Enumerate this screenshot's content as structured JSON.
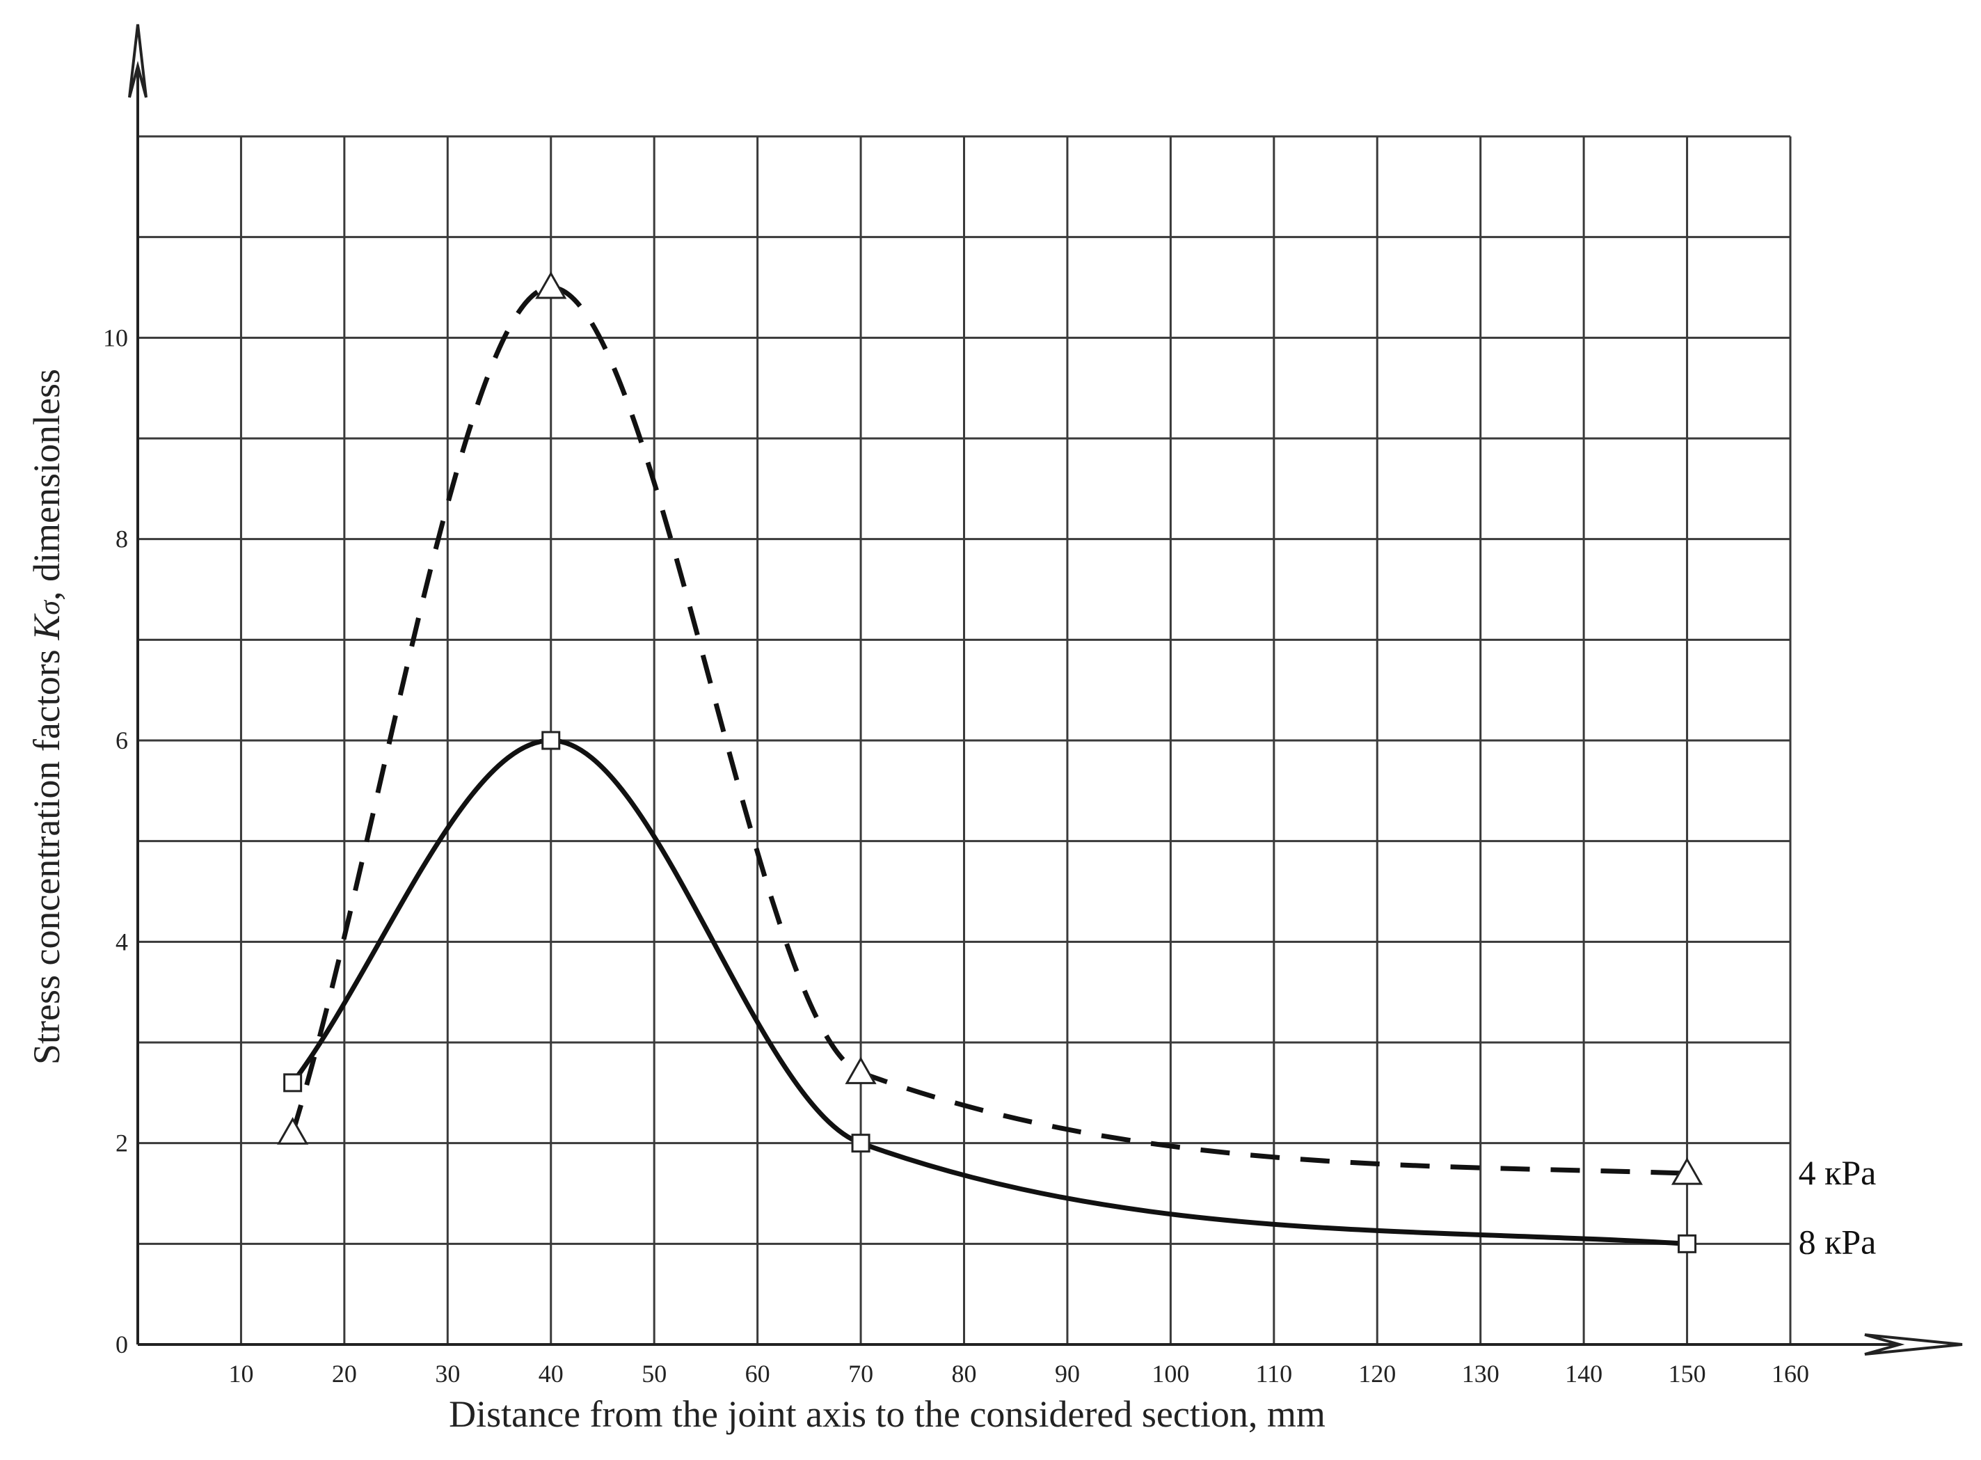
{
  "chart_data": {
    "type": "line",
    "xlabel": "Distance from the joint axis to the considered section, mm",
    "ylabel_prefix": "Stress concentration factors ",
    "ylabel_symbol": "K",
    "ylabel_subscript": "σ",
    "ylabel_suffix": ", dimensionless",
    "xlim": [
      0,
      160
    ],
    "ylim": [
      0,
      12
    ],
    "x_ticks": [
      10,
      20,
      30,
      40,
      50,
      60,
      70,
      80,
      90,
      100,
      110,
      120,
      130,
      140,
      150,
      160
    ],
    "x_tick_labels": [
      "10",
      "20",
      "30",
      "40",
      "50",
      "60",
      "70",
      "80",
      "90",
      "100",
      "110",
      "120",
      "130",
      "140",
      "150",
      "160"
    ],
    "y_ticks": [
      0,
      2,
      4,
      6,
      8,
      10
    ],
    "y_tick_labels": [
      "0",
      "2",
      "4",
      "6",
      "8",
      "10"
    ],
    "grid": true,
    "series": [
      {
        "name": "4 кPa",
        "line_style": "dashed",
        "marker": "triangle",
        "color": "#111111",
        "x": [
          15,
          40,
          70,
          150
        ],
        "y": [
          2.1,
          10.5,
          2.7,
          1.7
        ]
      },
      {
        "name": "8 кPa",
        "line_style": "solid",
        "marker": "square",
        "color": "#111111",
        "x": [
          15,
          40,
          70,
          150
        ],
        "y": [
          2.6,
          6.0,
          2.0,
          1.0
        ]
      }
    ]
  }
}
